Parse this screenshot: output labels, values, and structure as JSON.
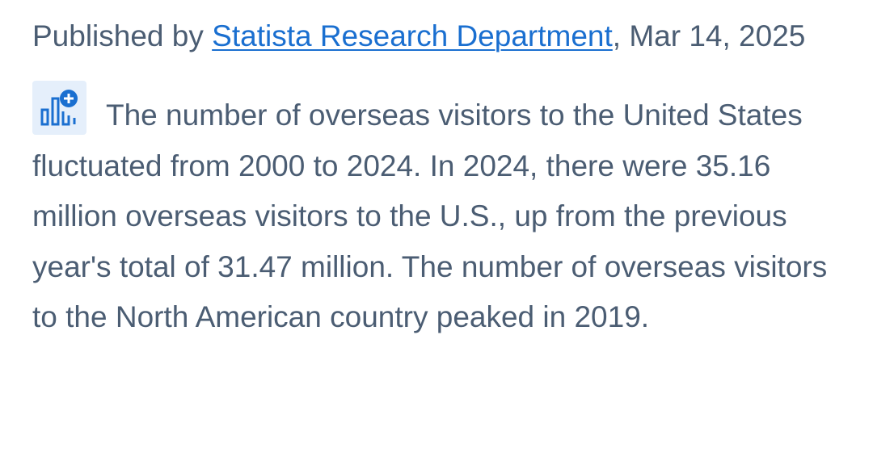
{
  "byline": {
    "prefix": "Published by",
    "author": "Statista Research Department",
    "suffix": ", Mar 14, 2025"
  },
  "description": "The number of overseas visitors to the United States fluctuated from 2000 to 2024. In 2024, there were 35.16 million overseas visitors to the U.S., up from the previous year's total of 31.47 million. The number of overseas visitors to the North American country peaked in 2019."
}
